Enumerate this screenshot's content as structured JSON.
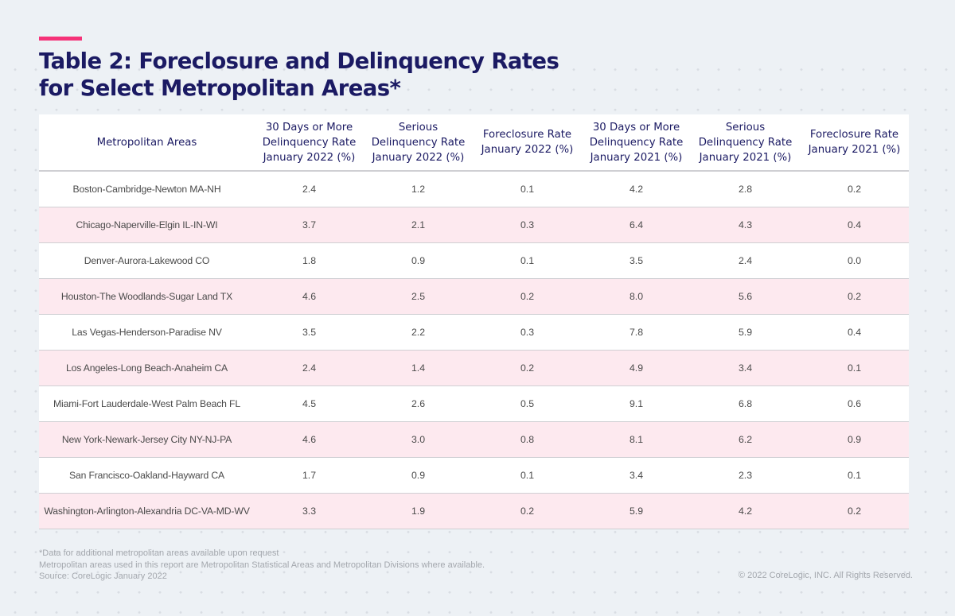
{
  "title": {
    "line1": "Table 2: Foreclosure and Delinquency Rates",
    "line2": "for Select Metropolitan Areas*"
  },
  "colors": {
    "accent": "#f53278",
    "title": "#1b1a63",
    "row_stripe": "#fde9ef",
    "background": "#edf1f5"
  },
  "table": {
    "headers": [
      [
        "Metropolitan Areas"
      ],
      [
        "30 Days or More",
        "Delinquency Rate",
        "January 2022 (%)"
      ],
      [
        "Serious",
        "Delinquency Rate",
        "January 2022 (%)"
      ],
      [
        "Foreclosure Rate",
        "January 2022 (%)"
      ],
      [
        "30 Days or More",
        "Delinquency Rate",
        "January 2021 (%)"
      ],
      [
        "Serious",
        "Delinquency Rate",
        "January 2021 (%)"
      ],
      [
        "Foreclosure Rate",
        "January 2021 (%)"
      ]
    ],
    "rows": [
      [
        "Boston-Cambridge-Newton MA-NH",
        "2.4",
        "1.2",
        "0.1",
        "4.2",
        "2.8",
        "0.2"
      ],
      [
        "Chicago-Naperville-Elgin IL-IN-WI",
        "3.7",
        "2.1",
        "0.3",
        "6.4",
        "4.3",
        "0.4"
      ],
      [
        "Denver-Aurora-Lakewood CO",
        "1.8",
        "0.9",
        "0.1",
        "3.5",
        "2.4",
        "0.0"
      ],
      [
        "Houston-The Woodlands-Sugar Land TX",
        "4.6",
        "2.5",
        "0.2",
        "8.0",
        "5.6",
        "0.2"
      ],
      [
        "Las Vegas-Henderson-Paradise NV",
        "3.5",
        "2.2",
        "0.3",
        "7.8",
        "5.9",
        "0.4"
      ],
      [
        "Los Angeles-Long Beach-Anaheim CA",
        "2.4",
        "1.4",
        "0.2",
        "4.9",
        "3.4",
        "0.1"
      ],
      [
        "Miami-Fort Lauderdale-West Palm Beach FL",
        "4.5",
        "2.6",
        "0.5",
        "9.1",
        "6.8",
        "0.6"
      ],
      [
        "New York-Newark-Jersey City NY-NJ-PA",
        "4.6",
        "3.0",
        "0.8",
        "8.1",
        "6.2",
        "0.9"
      ],
      [
        "San Francisco-Oakland-Hayward CA",
        "1.7",
        "0.9",
        "0.1",
        "3.4",
        "2.3",
        "0.1"
      ],
      [
        "Washington-Arlington-Alexandria DC-VA-MD-WV",
        "3.3",
        "1.9",
        "0.2",
        "5.9",
        "4.2",
        "0.2"
      ]
    ]
  },
  "footnotes": {
    "line1": "*Data for additional metropolitan areas available upon request",
    "line2": "Metropolitan areas used in this report are Metropolitan Statistical Areas and Metropolitan Divisions where available.",
    "line3": "Source: CoreLogic January 2022"
  },
  "copyright": "© 2022 CoreLogic, INC. All Rights Reserved."
}
